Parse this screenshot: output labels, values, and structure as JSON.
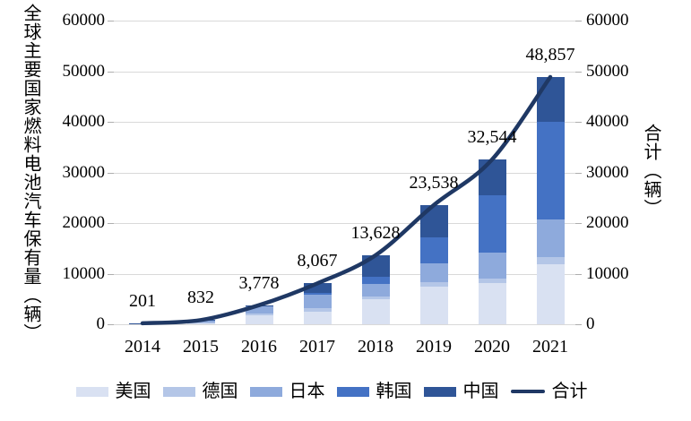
{
  "chart_data": {
    "type": "bar",
    "subtype": "stacked-column-with-smooth-total-line",
    "categories": [
      "2014",
      "2015",
      "2016",
      "2017",
      "2018",
      "2019",
      "2020",
      "2021"
    ],
    "series": [
      {
        "name": "美国",
        "color": "#D9E1F2",
        "values": [
          120,
          350,
          1750,
          2500,
          5000,
          7500,
          8200,
          11800
        ]
      },
      {
        "name": "德国",
        "color": "#B4C6E7",
        "values": [
          30,
          90,
          300,
          700,
          550,
          800,
          900,
          1450
        ]
      },
      {
        "name": "日本",
        "color": "#8EAADC",
        "values": [
          30,
          370,
          1500,
          2700,
          2470,
          3800,
          5100,
          7400
        ]
      },
      {
        "name": "韩国",
        "color": "#4472C4",
        "values": [
          20,
          12,
          100,
          300,
          1300,
          5150,
          11200,
          19400
        ]
      },
      {
        "name": "中国",
        "color": "#2F5597",
        "values": [
          1,
          10,
          128,
          1867,
          4308,
          6288,
          7144,
          8807
        ]
      }
    ],
    "line_series": {
      "name": "合计",
      "color": "#1F3864",
      "values": [
        201,
        832,
        3778,
        8067,
        13628,
        23538,
        32544,
        48857
      ],
      "labels": [
        "201",
        "832",
        "3,778",
        "8,067",
        "13,628",
        "23,538",
        "32,544",
        "48,857"
      ]
    },
    "left_axis": {
      "title": "全球主要国家燃料电池汽车保有量（辆）",
      "min": 0,
      "max": 60000,
      "step": 10000,
      "tick_labels": [
        "0",
        "10000",
        "20000",
        "30000",
        "40000",
        "50000",
        "60000"
      ]
    },
    "right_axis": {
      "title": "合计（辆）",
      "min": 0,
      "max": 60000,
      "step": 10000,
      "tick_labels": [
        "0",
        "10000",
        "20000",
        "30000",
        "40000",
        "50000",
        "60000"
      ]
    },
    "legend": {
      "position": "bottom",
      "items": [
        {
          "label": "美国",
          "swatch": "bar",
          "color": "#D9E1F2"
        },
        {
          "label": "德国",
          "swatch": "bar",
          "color": "#B4C6E7"
        },
        {
          "label": "日本",
          "swatch": "bar",
          "color": "#8EAADC"
        },
        {
          "label": "韩国",
          "swatch": "bar",
          "color": "#4472C4"
        },
        {
          "label": "中国",
          "swatch": "bar",
          "color": "#2F5597"
        },
        {
          "label": "合计",
          "swatch": "line",
          "color": "#1F3864"
        }
      ]
    },
    "grid": true,
    "styles": {
      "gridline_color": "#D9D9D9",
      "tick_color": "#AEAEAE",
      "text_color": "#000000",
      "background": "#FFFFFF"
    }
  }
}
